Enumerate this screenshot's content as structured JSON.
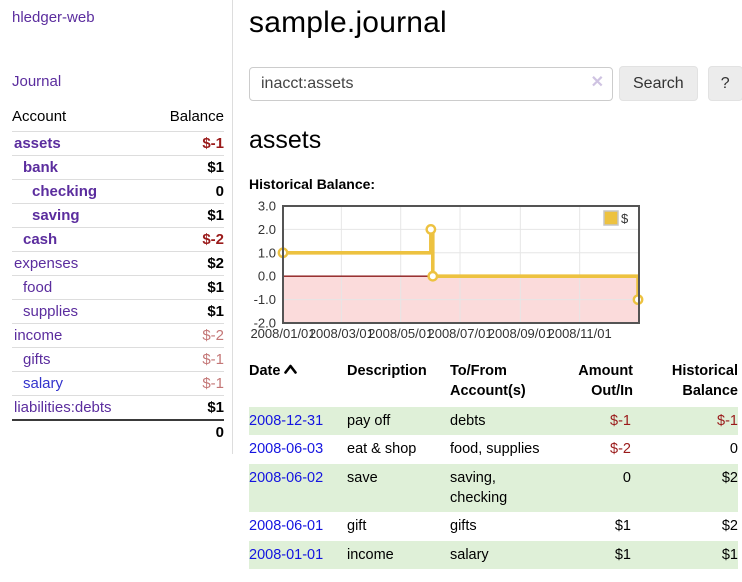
{
  "app": {
    "brand": "hledger-web",
    "nav_journal": "Journal"
  },
  "colors": {
    "link_purple": "#5b2d9e",
    "link_blue": "#1414e0",
    "neg_strong": "#9a1a1a",
    "neg_light": "#c47777",
    "stripe_green": "#dff0d8"
  },
  "sidebar": {
    "header": {
      "account": "Account",
      "balance": "Balance"
    },
    "accounts": [
      {
        "name": "assets",
        "indent": 0,
        "bold": true,
        "balance": "$-1",
        "balance_style": "neg-strong",
        "link_style": "purple"
      },
      {
        "name": "bank",
        "indent": 1,
        "bold": true,
        "balance": "$1",
        "balance_style": "normal",
        "link_style": "purple"
      },
      {
        "name": "checking",
        "indent": 2,
        "bold": true,
        "balance": "0",
        "balance_style": "normal",
        "link_style": "purple"
      },
      {
        "name": "saving",
        "indent": 2,
        "bold": true,
        "balance": "$1",
        "balance_style": "normal",
        "link_style": "purple"
      },
      {
        "name": "cash",
        "indent": 1,
        "bold": true,
        "balance": "$-2",
        "balance_style": "neg-strong",
        "link_style": "purple"
      },
      {
        "name": "expenses",
        "indent": 0,
        "bold": false,
        "balance": "$2",
        "balance_style": "normal",
        "link_style": "purple"
      },
      {
        "name": "food",
        "indent": 1,
        "bold": false,
        "balance": "$1",
        "balance_style": "normal",
        "link_style": "purple"
      },
      {
        "name": "supplies",
        "indent": 1,
        "bold": false,
        "balance": "$1",
        "balance_style": "normal",
        "link_style": "purple"
      },
      {
        "name": "income",
        "indent": 0,
        "bold": false,
        "balance": "$-2",
        "balance_style": "neg-light",
        "link_style": "purple"
      },
      {
        "name": "gifts",
        "indent": 1,
        "bold": false,
        "balance": "$-1",
        "balance_style": "neg-light",
        "link_style": "purple"
      },
      {
        "name": "salary",
        "indent": 1,
        "bold": false,
        "balance": "$-1",
        "balance_style": "neg-light",
        "link_style": "blue"
      },
      {
        "name": "liabilities:debts",
        "indent": 0,
        "bold": false,
        "balance": "$1",
        "balance_style": "normal",
        "link_style": "purple"
      }
    ],
    "total": "0"
  },
  "header": {
    "title": "sample.journal"
  },
  "search": {
    "value": "inacct:assets",
    "clear_icon": "✕",
    "button_label": "Search",
    "help_label": "?"
  },
  "account_page": {
    "title": "assets",
    "chart_label": "Historical Balance:"
  },
  "chart_data": {
    "type": "line",
    "title": "Historical Balance",
    "step": true,
    "series": [
      {
        "name": "$",
        "points": [
          [
            "2008-01-01",
            1.0
          ],
          [
            "2008-06-01",
            2.0
          ],
          [
            "2008-06-03",
            0.0
          ],
          [
            "2008-12-31",
            -1.0
          ]
        ]
      }
    ],
    "xlim": [
      "2008-01-01",
      "2009-01-01"
    ],
    "ylim": [
      -2,
      3
    ],
    "x_ticks": [
      "2008/01/01",
      "2008/03/01",
      "2008/05/01",
      "2008/07/01",
      "2008/09/01",
      "2008/11/01"
    ],
    "y_ticks": [
      "3.0",
      "2.0",
      "1.0",
      "0.0",
      "-1.0",
      "-2.0"
    ],
    "grid": true,
    "legend_position": "top-right",
    "legend_label": "$",
    "line_color": "#edc240",
    "marker_fill": "#ffffff",
    "negative_fill": "#fbdbdb",
    "zero_line_color": "#8b1a1a",
    "border_color": "#545454",
    "grid_color": "#e6e6e6"
  },
  "register": {
    "columns": [
      {
        "lines": [
          "Date"
        ],
        "align": "left",
        "sorted_asc": true
      },
      {
        "lines": [
          "Description"
        ],
        "align": "left"
      },
      {
        "lines": [
          "To/From",
          "Account(s)"
        ],
        "align": "left"
      },
      {
        "lines": [
          "Amount",
          "Out/In"
        ],
        "align": "right"
      },
      {
        "lines": [
          "Historical",
          "Balance"
        ],
        "align": "right"
      }
    ],
    "rows": [
      {
        "date": "2008-12-31",
        "description": "pay off",
        "accounts": "debts",
        "amount": "$-1",
        "amount_neg": true,
        "balance": "$-1",
        "balance_neg": true,
        "stripe": true
      },
      {
        "date": "2008-06-03",
        "description": "eat & shop",
        "accounts": "food, supplies",
        "amount": "$-2",
        "amount_neg": true,
        "balance": "0",
        "balance_neg": false,
        "stripe": false
      },
      {
        "date": "2008-06-02",
        "description": "save",
        "accounts": "saving, checking",
        "amount": "0",
        "amount_neg": false,
        "balance": "$2",
        "balance_neg": false,
        "stripe": true
      },
      {
        "date": "2008-06-01",
        "description": "gift",
        "accounts": "gifts",
        "amount": "$1",
        "amount_neg": false,
        "balance": "$2",
        "balance_neg": false,
        "stripe": false
      },
      {
        "date": "2008-01-01",
        "description": "income",
        "accounts": "salary",
        "amount": "$1",
        "amount_neg": false,
        "balance": "$1",
        "balance_neg": false,
        "stripe": true
      }
    ]
  }
}
